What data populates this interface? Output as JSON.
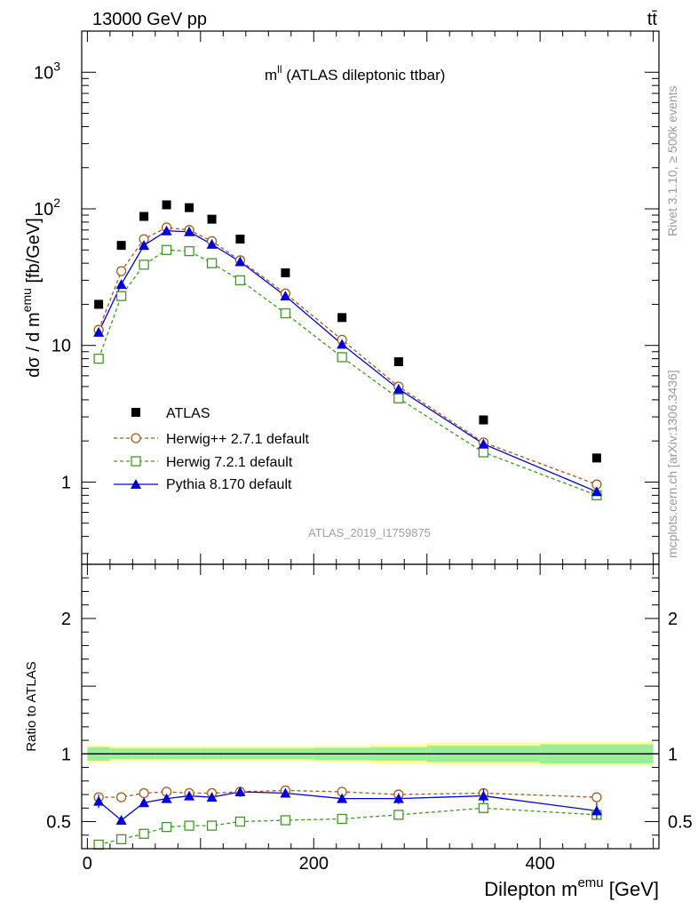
{
  "header": {
    "left": "13000 GeV pp",
    "right": "tt̄"
  },
  "side_labels": {
    "rivet": "Rivet 3.1.10, ≥ 500k events",
    "mcplots": "mcplots.cern.ch [arXiv:1306.3436]"
  },
  "analysis_id": "ATLAS_2019_I1759875",
  "chart_data": [
    {
      "type": "scatter",
      "title_main": "m",
      "title_sup": "ll",
      "title_rest": " (ATLAS dileptonic ttbar)",
      "ylabel_main": "dσ / d m",
      "ylabel_sup": "emu",
      "ylabel_unit": " [fb/GeV]",
      "yscale": "log",
      "ylim": [
        0.25,
        2000
      ],
      "xlim": [
        -5,
        505
      ],
      "ytick_labels": [
        {
          "value": 1,
          "label": "1"
        },
        {
          "value": 10,
          "label": "10"
        },
        {
          "value": 100,
          "label": "10",
          "sup": "2"
        },
        {
          "value": 1000,
          "label": "10",
          "sup": "3"
        }
      ],
      "x": [
        10,
        30,
        50,
        70,
        90,
        110,
        135,
        175,
        225,
        275,
        350,
        450
      ],
      "series": [
        {
          "name": "ATLAS",
          "color": "#000000",
          "marker": "filled-square",
          "line": "none",
          "values": [
            20,
            54,
            88,
            107,
            102,
            84,
            60,
            34,
            16,
            7.6,
            2.85,
            1.5
          ]
        },
        {
          "name": "Herwig++ 2.7.1 default",
          "color": "#a65a1c",
          "marker": "open-circle",
          "line": "dashed",
          "values": [
            13,
            35,
            60,
            73,
            70,
            58,
            42,
            24,
            11,
            5.0,
            1.95,
            0.96
          ]
        },
        {
          "name": "Herwig 7.2.1 default",
          "color": "#3e9a1e",
          "marker": "open-square",
          "line": "dashed",
          "values": [
            8.0,
            23,
            39,
            50,
            49,
            40,
            30,
            17.2,
            8.2,
            4.1,
            1.65,
            0.8
          ]
        },
        {
          "name": "Pythia 8.170 default",
          "color": "#0000dd",
          "marker": "filled-triangle",
          "line": "solid",
          "values": [
            12.5,
            28,
            54,
            69,
            68,
            55,
            41,
            23,
            10.2,
            4.8,
            1.9,
            0.85
          ]
        }
      ]
    },
    {
      "type": "scatter",
      "ylabel": "Ratio to ATLAS",
      "xlabel_main": "Dilepton m",
      "xlabel_sup": "emu",
      "xlabel_unit": " [GeV]",
      "ylim": [
        0.3,
        2.4
      ],
      "xlim": [
        -5,
        505
      ],
      "xticks": [
        0,
        200,
        400
      ],
      "ytick_labels": [
        {
          "value": 0.5,
          "label": "0.5"
        },
        {
          "value": 1,
          "label": "1"
        },
        {
          "value": 2,
          "label": "2"
        }
      ],
      "band_edges": [
        0,
        20,
        40,
        60,
        80,
        100,
        120,
        150,
        200,
        250,
        300,
        400,
        500
      ],
      "band_inner": [
        0.05,
        0.04,
        0.04,
        0.04,
        0.04,
        0.04,
        0.04,
        0.04,
        0.045,
        0.05,
        0.06,
        0.07
      ],
      "band_outer": [
        0.065,
        0.055,
        0.055,
        0.055,
        0.055,
        0.055,
        0.055,
        0.055,
        0.06,
        0.07,
        0.08,
        0.09
      ],
      "x": [
        10,
        30,
        50,
        70,
        90,
        110,
        135,
        175,
        225,
        275,
        350,
        450
      ],
      "series": [
        {
          "name": "Herwig++ 2.7.1 default",
          "color": "#a65a1c",
          "marker": "open-circle",
          "line": "dashed",
          "values": [
            0.68,
            0.68,
            0.71,
            0.72,
            0.71,
            0.71,
            0.72,
            0.73,
            0.72,
            0.7,
            0.71,
            0.68
          ],
          "errors": [
            0.02,
            0.01,
            0.01,
            0.01,
            0.01,
            0.01,
            0.01,
            0.01,
            0.01,
            0.02,
            0.03,
            0.03
          ]
        },
        {
          "name": "Herwig 7.2.1 default",
          "color": "#3e9a1e",
          "marker": "open-square",
          "line": "dashed",
          "values": [
            0.33,
            0.37,
            0.41,
            0.46,
            0.47,
            0.47,
            0.5,
            0.51,
            0.52,
            0.55,
            0.6,
            0.55
          ],
          "errors": [
            0.01,
            0.01,
            0.01,
            0.01,
            0.01,
            0.01,
            0.01,
            0.01,
            0.01,
            0.01,
            0.02,
            0.02
          ]
        },
        {
          "name": "Pythia 8.170 default",
          "color": "#0000dd",
          "marker": "filled-triangle",
          "line": "solid",
          "values": [
            0.65,
            0.51,
            0.64,
            0.67,
            0.69,
            0.68,
            0.72,
            0.71,
            0.67,
            0.67,
            0.69,
            0.58
          ],
          "errors": [
            0.05,
            0.03,
            0.02,
            0.02,
            0.02,
            0.02,
            0.01,
            0.01,
            0.03,
            0.04,
            0.05,
            0.06
          ]
        }
      ]
    }
  ]
}
